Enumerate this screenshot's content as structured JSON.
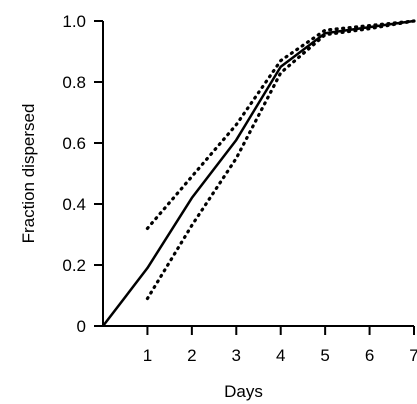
{
  "chart_data": {
    "type": "line",
    "title": "",
    "xlabel": "Days",
    "ylabel": "Fraction dispersed",
    "xlim": [
      0,
      7
    ],
    "ylim": [
      0,
      1.0
    ],
    "x_ticks": [
      1,
      2,
      3,
      4,
      5,
      6,
      7
    ],
    "y_ticks": [
      0,
      0.2,
      0.4,
      0.6,
      0.8,
      1.0
    ],
    "x_tick_labels": [
      "1",
      "2",
      "3",
      "4",
      "5",
      "6",
      "7"
    ],
    "y_tick_labels": [
      "0",
      "0.2",
      "0.4",
      "0.6",
      "0.8",
      "1.0"
    ],
    "grid": false,
    "legend": "none",
    "series": [
      {
        "style": "solid",
        "color": "#000000",
        "x": [
          0,
          1,
          2,
          3,
          4,
          5,
          6,
          7
        ],
        "y": [
          0,
          0.19,
          0.42,
          0.61,
          0.85,
          0.96,
          0.98,
          1.0
        ]
      },
      {
        "style": "dotted",
        "color": "#000000",
        "x": [
          1,
          2,
          3,
          4,
          5,
          6,
          7
        ],
        "y": [
          0.32,
          0.49,
          0.66,
          0.87,
          0.97,
          0.985,
          1.0
        ]
      },
      {
        "style": "dotted",
        "color": "#000000",
        "x": [
          1,
          2,
          3,
          4,
          5,
          6,
          7
        ],
        "y": [
          0.09,
          0.33,
          0.55,
          0.83,
          0.955,
          0.975,
          1.0
        ]
      }
    ]
  }
}
